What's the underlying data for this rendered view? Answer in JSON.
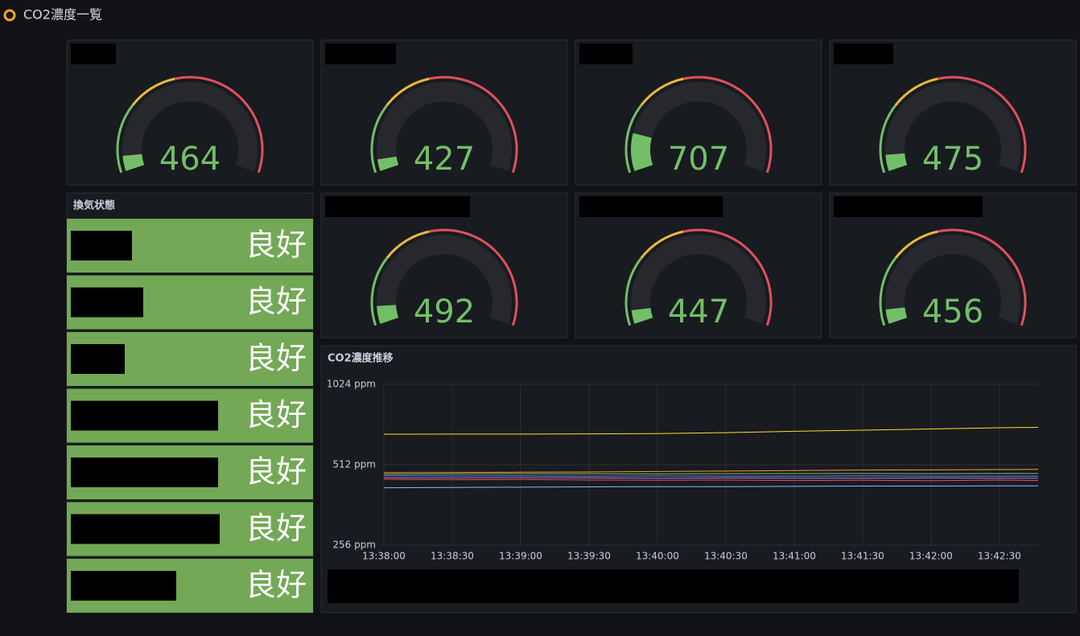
{
  "header": {
    "title": "CO2濃度一覧"
  },
  "gauges": {
    "type": "gauge",
    "min": 300,
    "max": 3000,
    "base_color": "#73bf69",
    "thresholds": [
      {
        "value": 1000,
        "color": "#eab839"
      },
      {
        "value": 1500,
        "color": "#e0505f"
      }
    ],
    "values": [
      464,
      427,
      707,
      475,
      492,
      447,
      456
    ]
  },
  "status_panel": {
    "title": "換気状態",
    "rows": [
      "良好",
      "良好",
      "良好",
      "良好",
      "良好",
      "良好",
      "良好"
    ],
    "color": "#73a857"
  },
  "chart_data": {
    "type": "line",
    "title": "CO2濃度推移",
    "log_scale": true,
    "grid": true,
    "x": [
      "13:38:00",
      "13:38:30",
      "13:39:00",
      "13:39:30",
      "13:40:00",
      "13:40:30",
      "13:41:00",
      "13:41:30",
      "13:42:00",
      "13:42:30",
      "13:42:47"
    ],
    "xlim": [
      "13:38:00",
      "13:42:47"
    ],
    "xticks": [
      "13:38:00",
      "13:38:30",
      "13:39:00",
      "13:39:30",
      "13:40:00",
      "13:40:30",
      "13:41:00",
      "13:41:30",
      "13:42:00",
      "13:42:30"
    ],
    "ylim": [
      256,
      1024
    ],
    "yticks": [
      {
        "value": 256,
        "label": "256 ppm"
      },
      {
        "value": 512,
        "label": "512 ppm"
      },
      {
        "value": 1024,
        "label": "1024 ppm"
      }
    ],
    "series": [
      {
        "color": "#fade2a",
        "values": [
          666,
          667,
          667,
          668,
          670,
          675,
          683,
          690,
          697,
          704,
          707
        ]
      },
      {
        "color": "#ff9830",
        "values": [
          478,
          479,
          480,
          481,
          483,
          485,
          487,
          489,
          490,
          491,
          492
        ]
      },
      {
        "color": "#73bf69",
        "values": [
          472,
          473,
          474,
          474,
          473,
          474,
          475,
          475,
          474,
          475,
          475
        ]
      },
      {
        "color": "#5794f2",
        "values": [
          466,
          465,
          465,
          464,
          465,
          464,
          464,
          465,
          464,
          464,
          464
        ]
      },
      {
        "color": "#b877d9",
        "values": [
          458,
          457,
          458,
          457,
          456,
          457,
          456,
          456,
          457,
          456,
          456
        ]
      },
      {
        "color": "#f2495c",
        "values": [
          452,
          450,
          451,
          449,
          448,
          449,
          447,
          448,
          446,
          449,
          447
        ]
      },
      {
        "color": "#8ab8ff",
        "values": [
          420,
          421,
          422,
          423,
          424,
          424,
          425,
          426,
          426,
          427,
          427
        ]
      }
    ]
  }
}
